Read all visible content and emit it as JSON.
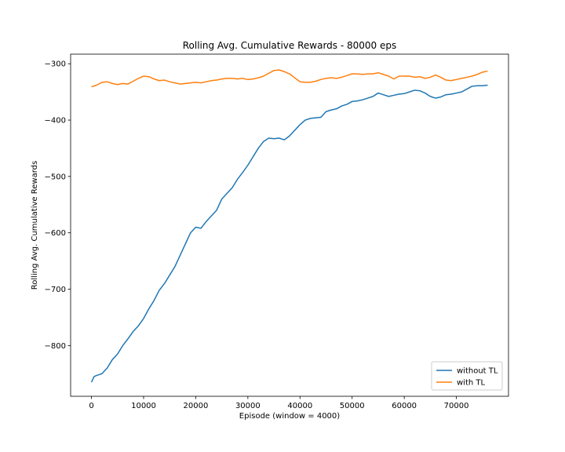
{
  "chart_data": {
    "type": "line",
    "title": "Rolling Avg. Cumulative Rewards - 80000 eps",
    "xlabel": "Episode (window = 4000)",
    "ylabel": "Rolling Avg. Cumulative Rewards",
    "xlim": [
      -4000,
      80000
    ],
    "ylim": [
      -890,
      -283
    ],
    "xticks": [
      0,
      10000,
      20000,
      30000,
      40000,
      50000,
      60000,
      70000
    ],
    "xtick_labels": [
      "0",
      "10000",
      "20000",
      "30000",
      "40000",
      "50000",
      "60000",
      "70000"
    ],
    "yticks": [
      -800,
      -700,
      -600,
      -500,
      -400,
      -300
    ],
    "ytick_labels": [
      "−800",
      "−700",
      "−600",
      "−500",
      "−400",
      "−300"
    ],
    "grid": false,
    "legend_position": "lower-right",
    "series": [
      {
        "name": "without TL",
        "color": "#1f77b4",
        "x": [
          0,
          500,
          1000,
          2000,
          3000,
          4000,
          5000,
          6000,
          7000,
          8000,
          9000,
          10000,
          11000,
          12000,
          13000,
          14000,
          15000,
          16000,
          17000,
          18000,
          19000,
          20000,
          21000,
          22000,
          23000,
          24000,
          25000,
          26000,
          27000,
          28000,
          29000,
          30000,
          31000,
          32000,
          33000,
          34000,
          35000,
          36000,
          37000,
          38000,
          39000,
          40000,
          41000,
          42000,
          43000,
          44000,
          45000,
          46000,
          47000,
          48000,
          49000,
          50000,
          51000,
          52000,
          53000,
          54000,
          55000,
          56000,
          57000,
          58000,
          59000,
          60000,
          61000,
          62000,
          63000,
          64000,
          65000,
          66000,
          67000,
          68000,
          69000,
          70000,
          71000,
          72000,
          73000,
          74000,
          75000,
          76000
        ],
        "y": [
          -865,
          -855,
          -853,
          -850,
          -840,
          -825,
          -815,
          -800,
          -788,
          -775,
          -765,
          -752,
          -735,
          -720,
          -702,
          -690,
          -675,
          -660,
          -640,
          -620,
          -600,
          -590,
          -592,
          -580,
          -570,
          -560,
          -540,
          -530,
          -520,
          -505,
          -493,
          -480,
          -465,
          -450,
          -438,
          -432,
          -433,
          -432,
          -435,
          -428,
          -418,
          -408,
          -400,
          -397,
          -396,
          -395,
          -385,
          -382,
          -380,
          -375,
          -372,
          -367,
          -366,
          -364,
          -361,
          -358,
          -352,
          -355,
          -358,
          -356,
          -354,
          -353,
          -350,
          -347,
          -348,
          -352,
          -358,
          -361,
          -359,
          -355,
          -354,
          -352,
          -350,
          -345,
          -340,
          -339,
          -339,
          -338
        ]
      },
      {
        "name": "with TL",
        "color": "#ff7f0e",
        "x": [
          0,
          1000,
          2000,
          3000,
          4000,
          5000,
          6000,
          7000,
          8000,
          9000,
          10000,
          11000,
          12000,
          13000,
          14000,
          15000,
          16000,
          17000,
          18000,
          19000,
          20000,
          21000,
          22000,
          23000,
          24000,
          25000,
          26000,
          27000,
          28000,
          29000,
          30000,
          31000,
          32000,
          33000,
          34000,
          35000,
          36000,
          37000,
          38000,
          39000,
          40000,
          41000,
          42000,
          43000,
          44000,
          45000,
          46000,
          47000,
          48000,
          49000,
          50000,
          51000,
          52000,
          53000,
          54000,
          55000,
          56000,
          57000,
          58000,
          59000,
          60000,
          61000,
          62000,
          63000,
          64000,
          65000,
          66000,
          67000,
          68000,
          69000,
          70000,
          71000,
          72000,
          73000,
          74000,
          75000,
          76000
        ],
        "y": [
          -341,
          -338,
          -333,
          -332,
          -335,
          -337,
          -335,
          -336,
          -331,
          -326,
          -322,
          -323,
          -327,
          -330,
          -329,
          -332,
          -334,
          -336,
          -335,
          -334,
          -333,
          -334,
          -332,
          -330,
          -329,
          -327,
          -326,
          -326,
          -327,
          -326,
          -328,
          -327,
          -325,
          -322,
          -317,
          -312,
          -311,
          -314,
          -318,
          -325,
          -332,
          -333,
          -333,
          -331,
          -328,
          -326,
          -325,
          -326,
          -324,
          -321,
          -318,
          -318,
          -319,
          -318,
          -318,
          -316,
          -319,
          -322,
          -327,
          -322,
          -322,
          -322,
          -324,
          -323,
          -326,
          -324,
          -320,
          -324,
          -329,
          -330,
          -328,
          -326,
          -324,
          -322,
          -319,
          -315,
          -313
        ]
      }
    ]
  }
}
